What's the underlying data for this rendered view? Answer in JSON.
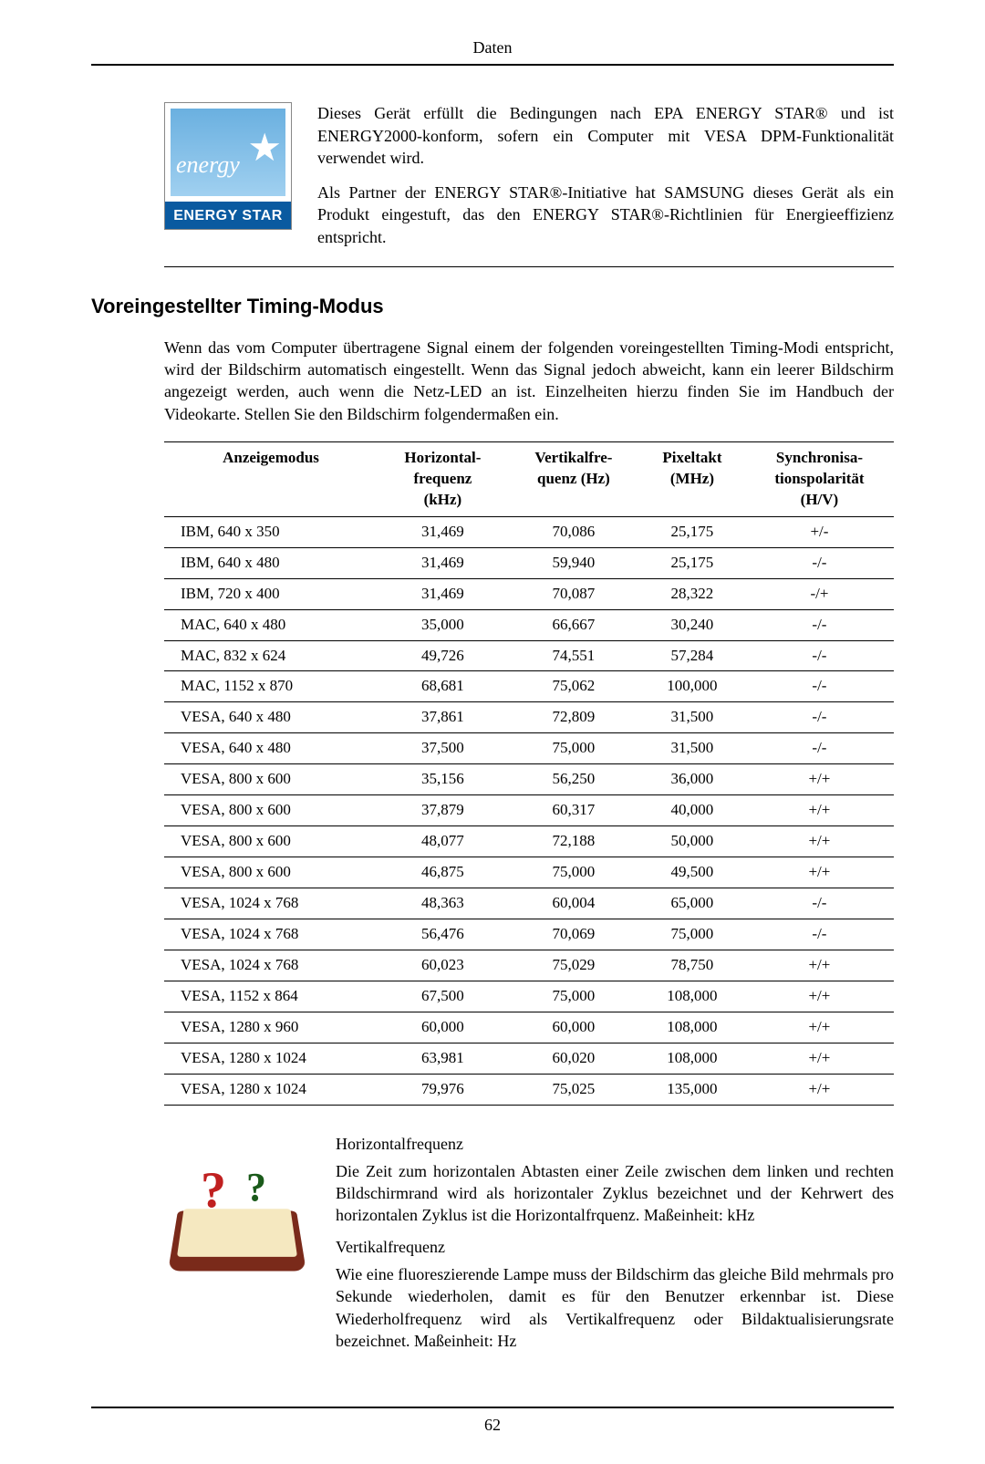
{
  "header": {
    "title": "Daten"
  },
  "energy": {
    "logo_script": "energy",
    "logo_band": "ENERGY STAR",
    "p1": "Dieses Gerät erfüllt die Bedingungen nach EPA ENERGY STAR® und ist ENERGY2000-konform, sofern ein Computer mit VESA DPM-Funktionalität verwendet wird.",
    "p2": "Als Partner der ENERGY STAR®-Initiative hat SAMSUNG dieses Gerät als ein Produkt eingestuft, das den ENERGY STAR®-Richtlinien für Energieeffizienz entspricht."
  },
  "section_title": "Voreingestellter Timing-Modus",
  "intro": "Wenn das vom Computer übertragene Signal einem der folgenden voreingestellten Timing-Modi entspricht, wird der Bildschirm automatisch eingestellt. Wenn das Signal jedoch abweicht, kann ein leerer Bildschirm angezeigt werden, auch wenn die Netz-LED an ist. Einzelheiten hierzu finden Sie im Handbuch der Videokarte. Stellen Sie den Bildschirm folgendermaßen ein.",
  "table": {
    "headers": {
      "mode": "Anzeigemodus",
      "hfreq": "Horizontal-frequenz (kHz)",
      "vfreq": "Vertikalfre-quenz (Hz)",
      "pixel": "Pixeltakt (MHz)",
      "sync": "Synchronisa-tionspolarität (H/V)"
    },
    "rows": [
      {
        "mode": "IBM, 640 x 350",
        "h": "31,469",
        "v": "70,086",
        "p": "25,175",
        "s": "+/-"
      },
      {
        "mode": "IBM, 640 x 480",
        "h": "31,469",
        "v": "59,940",
        "p": "25,175",
        "s": "-/-"
      },
      {
        "mode": "IBM, 720 x 400",
        "h": "31,469",
        "v": "70,087",
        "p": "28,322",
        "s": "-/+"
      },
      {
        "mode": "MAC, 640 x 480",
        "h": "35,000",
        "v": "66,667",
        "p": "30,240",
        "s": "-/-"
      },
      {
        "mode": "MAC, 832 x 624",
        "h": "49,726",
        "v": "74,551",
        "p": "57,284",
        "s": "-/-"
      },
      {
        "mode": "MAC, 1152 x 870",
        "h": "68,681",
        "v": "75,062",
        "p": "100,000",
        "s": "-/-"
      },
      {
        "mode": "VESA, 640 x 480",
        "h": "37,861",
        "v": "72,809",
        "p": "31,500",
        "s": "-/-"
      },
      {
        "mode": "VESA, 640 x 480",
        "h": "37,500",
        "v": "75,000",
        "p": "31,500",
        "s": "-/-"
      },
      {
        "mode": "VESA, 800 x 600",
        "h": "35,156",
        "v": "56,250",
        "p": "36,000",
        "s": "+/+"
      },
      {
        "mode": "VESA, 800 x 600",
        "h": "37,879",
        "v": "60,317",
        "p": "40,000",
        "s": "+/+"
      },
      {
        "mode": "VESA, 800 x 600",
        "h": "48,077",
        "v": "72,188",
        "p": "50,000",
        "s": "+/+"
      },
      {
        "mode": "VESA, 800 x 600",
        "h": "46,875",
        "v": "75,000",
        "p": "49,500",
        "s": "+/+"
      },
      {
        "mode": "VESA, 1024 x 768",
        "h": "48,363",
        "v": "60,004",
        "p": "65,000",
        "s": "-/-"
      },
      {
        "mode": "VESA, 1024 x 768",
        "h": "56,476",
        "v": "70,069",
        "p": "75,000",
        "s": "-/-"
      },
      {
        "mode": "VESA, 1024 x 768",
        "h": "60,023",
        "v": "75,029",
        "p": "78,750",
        "s": "+/+"
      },
      {
        "mode": "VESA, 1152 x 864",
        "h": "67,500",
        "v": "75,000",
        "p": "108,000",
        "s": "+/+"
      },
      {
        "mode": "VESA, 1280 x 960",
        "h": "60,000",
        "v": "60,000",
        "p": "108,000",
        "s": "+/+"
      },
      {
        "mode": "VESA, 1280 x 1024",
        "h": "63,981",
        "v": "60,020",
        "p": "108,000",
        "s": "+/+"
      },
      {
        "mode": "VESA, 1280 x 1024",
        "h": "79,976",
        "v": "75,025",
        "p": "135,000",
        "s": "+/+"
      }
    ]
  },
  "definitions": {
    "h_title": "Horizontalfrequenz",
    "h_body": "Die Zeit zum horizontalen Abtasten einer Zeile zwischen dem linken und rechten Bildschirmrand wird als horizontaler Zyklus bezeichnet und der Kehrwert des horizontalen Zyklus ist die Horizontalfrquenz. Maßeinheit: kHz",
    "v_title": "Vertikalfrequenz",
    "v_body": "Wie eine fluoreszierende Lampe muss der Bildschirm das gleiche Bild mehrmals pro Sekunde wiederholen, damit es für den Benutzer erkennbar ist. Diese Wiederholfrequenz wird als Vertikalfrequenz oder Bildaktualisierungsrate bezeichnet. Maßeinheit: Hz"
  },
  "footer": {
    "page": "62"
  }
}
